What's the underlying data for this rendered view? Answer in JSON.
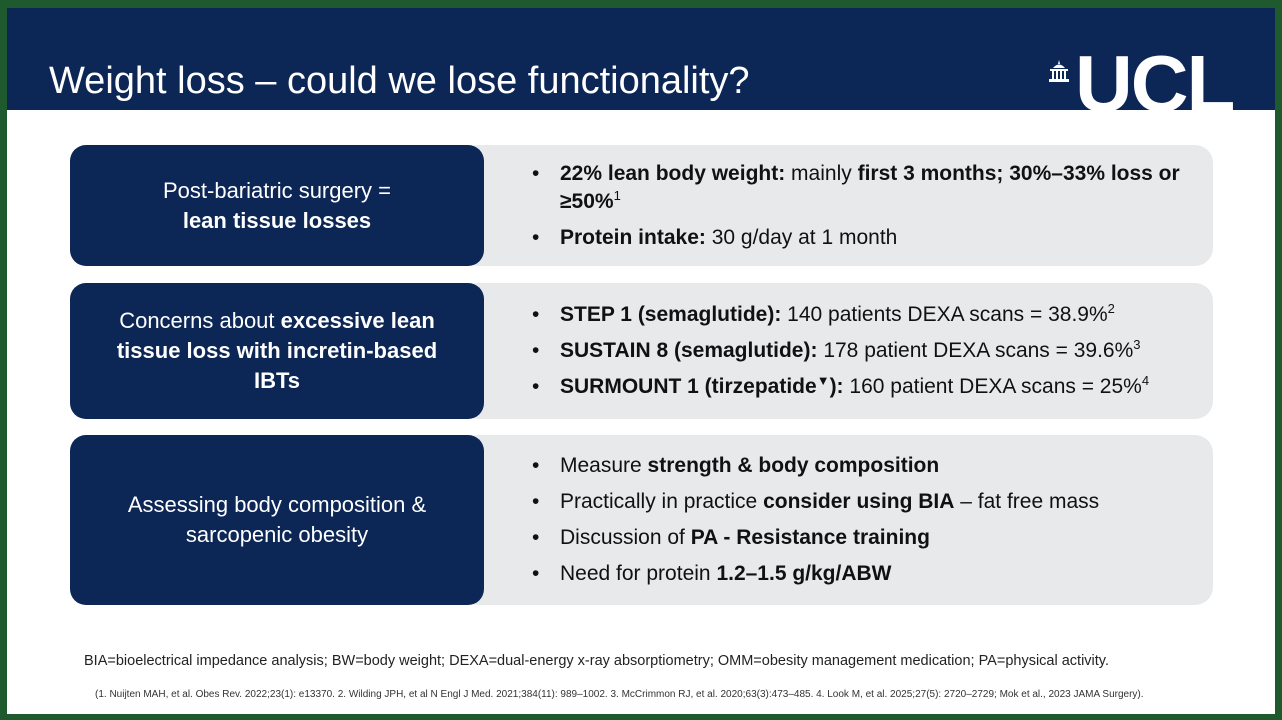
{
  "header": {
    "title": "Weight loss – could we lose functionality?",
    "logo": "UCL"
  },
  "rows": [
    {
      "left": [
        [
          {
            "t": "Post-bariatric surgery ="
          }
        ],
        [
          {
            "b": "lean tissue losses"
          }
        ]
      ],
      "bullets": [
        [
          {
            "b": "22% lean body weight:"
          },
          {
            "t": " mainly "
          },
          {
            "b": "first 3 months; 30%–33% loss or ≥50%"
          },
          {
            "sup": "1"
          }
        ],
        [
          {
            "b": "Protein intake:"
          },
          {
            "t": " 30 g/day at 1 month"
          }
        ]
      ]
    },
    {
      "left": [
        [
          {
            "t": "Concerns about "
          },
          {
            "b": "excessive lean"
          }
        ],
        [
          {
            "b": "tissue loss with incretin-based"
          }
        ],
        [
          {
            "b": "IBTs"
          }
        ]
      ],
      "bullets": [
        [
          {
            "b": "STEP 1 (semaglutide):"
          },
          {
            "t": " 140 patients DEXA scans = 38.9%"
          },
          {
            "sup": "2"
          }
        ],
        [
          {
            "b": "SUSTAIN 8 (semaglutide):"
          },
          {
            "t": " 178 patient DEXA scans = 39.6%"
          },
          {
            "sup": "3"
          }
        ],
        [
          {
            "b": "SURMOUNT 1 (tirzepatide"
          },
          {
            "sup": "▼"
          },
          {
            "b": "):"
          },
          {
            "t": " 160 patient DEXA scans = 25%"
          },
          {
            "sup": "4"
          }
        ]
      ]
    },
    {
      "left": [
        [
          {
            "t": "Assessing body composition &"
          }
        ],
        [
          {
            "t": "sarcopenic obesity"
          }
        ]
      ],
      "bullets": [
        [
          {
            "t": "Measure "
          },
          {
            "b": "strength & body composition"
          }
        ],
        [
          {
            "t": "Practically in practice "
          },
          {
            "b": "consider using BIA"
          },
          {
            "t": " – fat free mass"
          }
        ],
        [
          {
            "t": "Discussion of "
          },
          {
            "b": "PA - Resistance training"
          }
        ],
        [
          {
            "t": "Need for protein "
          },
          {
            "b": "1.2–1.5 g/kg/ABW"
          }
        ]
      ]
    }
  ],
  "footnote": "BIA=bioelectrical impedance analysis; BW=body weight; DEXA=dual-energy x-ray absorptiometry; OMM=obesity management medication; PA=physical activity.",
  "references": "(1. Nuijten MAH, et al. Obes Rev. 2022;23(1): e13370. 2. Wilding JPH, et al N Engl J Med. 2021;384(11): 989–1002. 3. McCrimmon RJ, et al. 2020;63(3):473–485. 4. Look M, et al. 2025;27(5): 2720–2729; Mok et al., 2023 JAMA Surgery)."
}
